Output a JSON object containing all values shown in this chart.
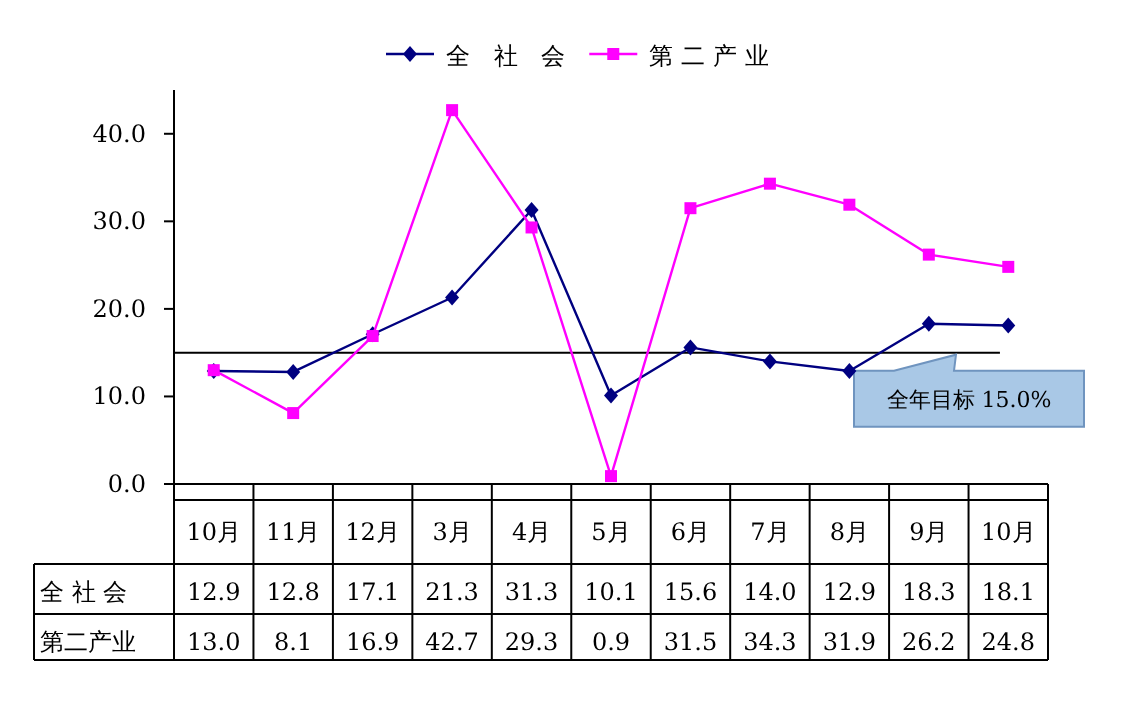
{
  "chart_data": {
    "type": "line",
    "categories": [
      "10月",
      "11月",
      "12月",
      "3月",
      "4月",
      "5月",
      "6月",
      "7月",
      "8月",
      "9月",
      "10月"
    ],
    "series": [
      {
        "name": "全 社 会",
        "color": "#000080",
        "marker": "diamond",
        "values": [
          12.9,
          12.8,
          17.1,
          21.3,
          31.3,
          10.1,
          15.6,
          14.0,
          12.9,
          18.3,
          18.1
        ],
        "value_labels": [
          "12.9",
          "12.8",
          "17.1",
          "21.3",
          "31.3",
          "10.1",
          "15.6",
          "14.0",
          "12.9",
          "18.3",
          "18.1"
        ]
      },
      {
        "name": "第二产业",
        "color": "#ff00ff",
        "marker": "square",
        "values": [
          13.0,
          8.1,
          16.9,
          42.7,
          29.3,
          0.9,
          31.5,
          34.3,
          31.9,
          26.2,
          24.8
        ],
        "value_labels": [
          "13.0",
          "8.1",
          "16.9",
          "42.7",
          "29.3",
          "0.9",
          "31.5",
          "34.3",
          "31.9",
          "26.2",
          "24.8"
        ]
      }
    ],
    "ylim": [
      0,
      45
    ],
    "yticks": [
      {
        "value": 0,
        "label": "0.0"
      },
      {
        "value": 10,
        "label": "10.0"
      },
      {
        "value": 20,
        "label": "20.0"
      },
      {
        "value": 30,
        "label": "30.0"
      },
      {
        "value": 40,
        "label": "40.0"
      }
    ],
    "ref_lines": [
      {
        "axis": "y",
        "value": 15,
        "label": "全年目标 15.0%",
        "color": "#000000"
      }
    ],
    "legend": "top",
    "grid": false
  }
}
